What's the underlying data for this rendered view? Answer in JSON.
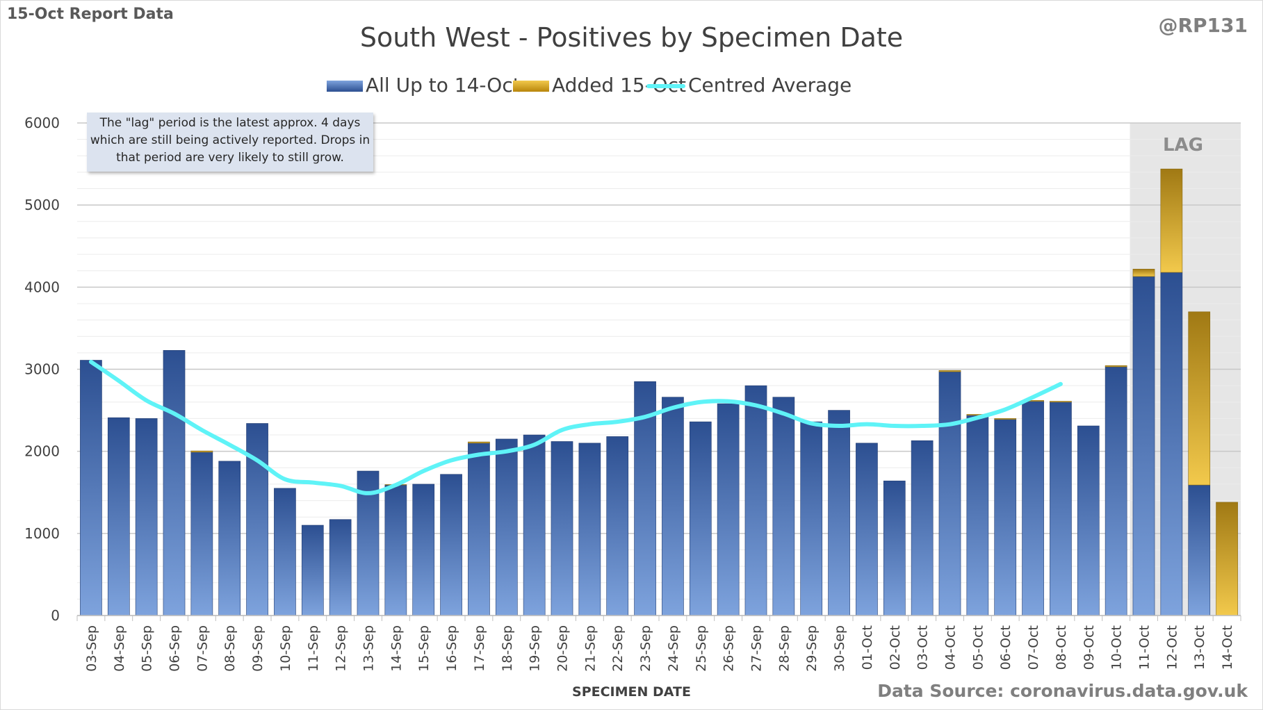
{
  "header": {
    "report_label": "15-Oct Report Data",
    "handle": "@RP131"
  },
  "annotation": {
    "note": "The \"lag\" period is the latest approx. 4 days which are still being actively reported. Drops in that period are very likely to still grow.",
    "lag_label": "LAG"
  },
  "footer": {
    "data_source": "Data Source: coronavirus.data.gov.uk"
  },
  "colors": {
    "bar_blue_top": "#2c4f91",
    "bar_blue_bottom": "#7ea3dd",
    "bar_gold_top": "#b8860b",
    "bar_gold_bottom": "#f2c94c",
    "average_line": "#5ff3f7",
    "lag_shade": "#e6e6e6"
  },
  "chart_data": {
    "type": "bar",
    "stacked": true,
    "title": "South West - Positives by Specimen Date",
    "xlabel": "SPECIMEN DATE",
    "ylabel": "",
    "ylim": [
      0,
      6000
    ],
    "yticks": [
      0,
      1000,
      2000,
      3000,
      4000,
      5000,
      6000
    ],
    "grid": true,
    "legend_position": "top",
    "lag_categories": [
      "11-Oct",
      "12-Oct",
      "13-Oct",
      "14-Oct"
    ],
    "categories": [
      "03-Sep",
      "04-Sep",
      "05-Sep",
      "06-Sep",
      "07-Sep",
      "08-Sep",
      "09-Sep",
      "10-Sep",
      "11-Sep",
      "12-Sep",
      "13-Sep",
      "14-Sep",
      "15-Sep",
      "16-Sep",
      "17-Sep",
      "18-Sep",
      "19-Sep",
      "20-Sep",
      "21-Sep",
      "22-Sep",
      "23-Sep",
      "24-Sep",
      "25-Sep",
      "26-Sep",
      "27-Sep",
      "28-Sep",
      "29-Sep",
      "30-Sep",
      "01-Oct",
      "02-Oct",
      "03-Oct",
      "04-Oct",
      "05-Oct",
      "06-Oct",
      "07-Oct",
      "08-Oct",
      "09-Oct",
      "10-Oct",
      "11-Oct",
      "12-Oct",
      "13-Oct",
      "14-Oct"
    ],
    "series": [
      {
        "name": "All Up to 14-Oct",
        "type": "bar",
        "values": [
          3110,
          2410,
          2400,
          3230,
          1990,
          1880,
          2340,
          1550,
          1100,
          1170,
          1760,
          1590,
          1600,
          1720,
          2100,
          2150,
          2200,
          2120,
          2100,
          2180,
          2850,
          2660,
          2360,
          2580,
          2800,
          2660,
          2360,
          2500,
          2100,
          1640,
          2130,
          2970,
          2440,
          2390,
          2610,
          2600,
          2310,
          3030,
          4130,
          4180,
          1590,
          0
        ]
      },
      {
        "name": "Added 15-Oct",
        "type": "bar",
        "values": [
          0,
          0,
          0,
          0,
          15,
          0,
          0,
          0,
          0,
          0,
          0,
          5,
          0,
          0,
          15,
          0,
          0,
          0,
          0,
          0,
          0,
          0,
          0,
          0,
          0,
          0,
          0,
          0,
          0,
          0,
          0,
          15,
          10,
          10,
          10,
          10,
          0,
          15,
          90,
          1260,
          2110,
          1380
        ]
      },
      {
        "name": "Centred Average",
        "type": "line",
        "values": [
          3090,
          2860,
          2620,
          2460,
          2260,
          2080,
          1890,
          1660,
          1620,
          1580,
          1490,
          1590,
          1760,
          1890,
          1960,
          2000,
          2080,
          2260,
          2330,
          2360,
          2420,
          2530,
          2600,
          2610,
          2560,
          2460,
          2340,
          2310,
          2330,
          2310,
          2310,
          2330,
          2410,
          2510,
          2660,
          2820,
          null,
          null,
          null,
          null,
          null,
          null
        ]
      }
    ]
  }
}
